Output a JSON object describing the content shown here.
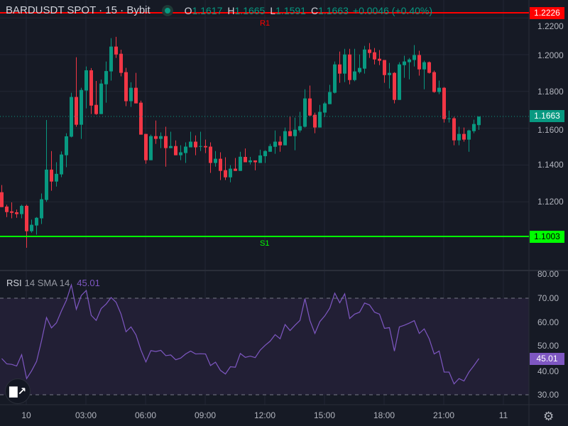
{
  "header": {
    "symbol": "BARDUSDT SPOT · 15 · Bybit",
    "open_label": "O",
    "open": "1.1617",
    "high_label": "H",
    "high": "1.1665",
    "low_label": "L",
    "low": "1.1591",
    "close_label": "C",
    "close": "1.1663",
    "change": "+0.0046 (+0.40%)",
    "status_icon": "market-open-dot"
  },
  "rsi_legend": {
    "name": "RSI",
    "params": "14 SMA 14",
    "value": "45.01"
  },
  "levels": {
    "r1": {
      "label": "R1",
      "price": "1.2226",
      "color": "#ff0000"
    },
    "s1": {
      "label": "S1",
      "price": "1.1003",
      "color": "#00ff00"
    },
    "last": {
      "price": "1.1663",
      "color": "#089981"
    },
    "rsi_last": {
      "value": "45.01",
      "color": "#7e57c2"
    }
  },
  "price_axis": [
    "1.2200",
    "1.2000",
    "1.1800",
    "1.1600",
    "1.1400",
    "1.1200"
  ],
  "rsi_axis": [
    "80.00",
    "70.00",
    "60.00",
    "50.00",
    "40.00",
    "30.00"
  ],
  "time_axis": [
    "10",
    "03:00",
    "06:00",
    "09:00",
    "12:00",
    "15:00",
    "18:00",
    "21:00",
    "11"
  ],
  "colors": {
    "up": "#089981",
    "down": "#f23645",
    "rsi": "#7e57c2",
    "background": "#161a25"
  },
  "logo_text": "TV",
  "settings_icon": "gear-icon",
  "chart_data": [
    {
      "type": "candlestick",
      "interval": "15",
      "ylim": [
        1.095,
        1.228
      ],
      "grid": true,
      "ohlc_order": [
        "open",
        "high",
        "low",
        "close"
      ],
      "candles": [
        [
          1.1252,
          1.1291,
          1.1171,
          1.1171
        ],
        [
          1.1174,
          1.1184,
          1.1117,
          1.1144
        ],
        [
          1.1148,
          1.1197,
          1.111,
          1.114
        ],
        [
          1.1143,
          1.1158,
          1.1113,
          1.1133
        ],
        [
          1.1133,
          1.1184,
          1.111,
          1.1178
        ],
        [
          1.1178,
          1.1184,
          1.095,
          1.104
        ],
        [
          1.104,
          1.1103,
          1.1032,
          1.1075
        ],
        [
          1.1071,
          1.1117,
          1.1021,
          1.1113
        ],
        [
          1.111,
          1.1245,
          1.1079,
          1.1214
        ],
        [
          1.121,
          1.1645,
          1.12,
          1.1375
        ],
        [
          1.1375,
          1.1476,
          1.126,
          1.131
        ],
        [
          1.131,
          1.1415,
          1.1283,
          1.1352
        ],
        [
          1.1349,
          1.1474,
          1.1334,
          1.1457
        ],
        [
          1.1453,
          1.1573,
          1.1388,
          1.1556
        ],
        [
          1.1554,
          1.1793,
          1.155,
          1.177
        ],
        [
          1.177,
          1.1986,
          1.1608,
          1.1619
        ],
        [
          1.1619,
          1.182,
          1.1542,
          1.1808
        ],
        [
          1.1805,
          1.1936,
          1.1708,
          1.1915
        ],
        [
          1.1915,
          1.1927,
          1.1677,
          1.1723
        ],
        [
          1.1727,
          1.1857,
          1.1673,
          1.1677
        ],
        [
          1.1677,
          1.1865,
          1.1677,
          1.1843
        ],
        [
          1.1839,
          1.1963,
          1.1739,
          1.1911
        ],
        [
          1.1909,
          1.209,
          1.1859,
          1.2044
        ],
        [
          1.2044,
          1.2097,
          1.1982,
          1.2001
        ],
        [
          1.2005,
          1.2027,
          1.1882,
          1.1901
        ],
        [
          1.1905,
          1.1928,
          1.172,
          1.1747
        ],
        [
          1.1747,
          1.185,
          1.1716,
          1.182
        ],
        [
          1.182,
          1.1901,
          1.1735,
          1.1735
        ],
        [
          1.1739,
          1.175,
          1.1565,
          1.1565
        ],
        [
          1.1569,
          1.1569,
          1.1407,
          1.1426
        ],
        [
          1.1426,
          1.1565,
          1.1426,
          1.1557
        ],
        [
          1.1557,
          1.1642,
          1.1515,
          1.1542
        ],
        [
          1.1542,
          1.1577,
          1.1492,
          1.1557
        ],
        [
          1.1557,
          1.1608,
          1.1391,
          1.1492
        ],
        [
          1.1492,
          1.1581,
          1.1492,
          1.1503
        ],
        [
          1.1503,
          1.1534,
          1.1453,
          1.1453
        ],
        [
          1.1453,
          1.1507,
          1.1426,
          1.1469
        ],
        [
          1.1465,
          1.1523,
          1.1411,
          1.15
        ],
        [
          1.1496,
          1.1581,
          1.1496,
          1.1527
        ],
        [
          1.1527,
          1.1561,
          1.1453,
          1.1496
        ],
        [
          1.15,
          1.1581,
          1.1476,
          1.1503
        ],
        [
          1.1503,
          1.1538,
          1.1465,
          1.1496
        ],
        [
          1.15,
          1.1523,
          1.1357,
          1.1411
        ],
        [
          1.1411,
          1.1476,
          1.1391,
          1.1434
        ],
        [
          1.1434,
          1.1469,
          1.1318,
          1.1368
        ],
        [
          1.1372,
          1.1442,
          1.1318,
          1.1333
        ],
        [
          1.1333,
          1.1399,
          1.1306,
          1.138
        ],
        [
          1.138,
          1.1438,
          1.1368,
          1.1368
        ],
        [
          1.1368,
          1.1472,
          1.1368,
          1.1445
        ],
        [
          1.1444,
          1.149,
          1.1415,
          1.1415
        ],
        [
          1.1415,
          1.1444,
          1.1403,
          1.1425
        ],
        [
          1.1425,
          1.1425,
          1.1371,
          1.1415
        ],
        [
          1.1411,
          1.1483,
          1.1411,
          1.1452
        ],
        [
          1.1448,
          1.148,
          1.1411,
          1.1476
        ],
        [
          1.1472,
          1.1515,
          1.1472,
          1.1503
        ],
        [
          1.1499,
          1.1588,
          1.1461,
          1.1527
        ],
        [
          1.1527,
          1.1557,
          1.1472,
          1.1507
        ],
        [
          1.1507,
          1.1604,
          1.1507,
          1.1584
        ],
        [
          1.1584,
          1.1665,
          1.1557,
          1.1557
        ],
        [
          1.1557,
          1.1658,
          1.148,
          1.1592
        ],
        [
          1.1588,
          1.1689,
          1.1577,
          1.1611
        ],
        [
          1.1608,
          1.1812,
          1.1604,
          1.1762
        ],
        [
          1.1762,
          1.1832,
          1.1662,
          1.1669
        ],
        [
          1.1673,
          1.1685,
          1.1573,
          1.1604
        ],
        [
          1.1604,
          1.1727,
          1.1604,
          1.1689
        ],
        [
          1.1685,
          1.1743,
          1.1662,
          1.1735
        ],
        [
          1.1731,
          1.1836,
          1.1731,
          1.1797
        ],
        [
          1.1793,
          1.1963,
          1.1789,
          1.1947
        ],
        [
          1.1947,
          1.2017,
          1.1847,
          1.1897
        ],
        [
          1.1897,
          1.2032,
          1.1851,
          1.2001
        ],
        [
          1.2001,
          1.2032,
          1.1839,
          1.1862
        ],
        [
          1.1862,
          1.2032,
          1.1855,
          1.1909
        ],
        [
          1.1905,
          1.2001,
          1.1897,
          1.1928
        ],
        [
          1.1924,
          1.2048,
          1.1897,
          1.2028
        ],
        [
          1.2028,
          1.2063,
          1.1982,
          1.2009
        ],
        [
          1.2013,
          1.2036,
          1.1947,
          1.1974
        ],
        [
          1.1978,
          1.2025,
          1.1943,
          1.1967
        ],
        [
          1.1971,
          1.1971,
          1.1847,
          1.1889
        ],
        [
          1.1889,
          1.1955,
          1.1816,
          1.1901
        ],
        [
          1.1901,
          1.1905,
          1.1735,
          1.1754
        ],
        [
          1.1754,
          1.1959,
          1.1754,
          1.1947
        ],
        [
          1.1943,
          1.1994,
          1.1874,
          1.1963
        ],
        [
          1.1959,
          1.1982,
          1.1866,
          1.1974
        ],
        [
          1.1971,
          1.2052,
          1.1936,
          1.1998
        ],
        [
          1.1998,
          1.2021,
          1.1886,
          1.192
        ],
        [
          1.192,
          1.1967,
          1.1812,
          1.1959
        ],
        [
          1.1959,
          1.1963,
          1.1897,
          1.1901
        ],
        [
          1.1905,
          1.1913,
          1.1793,
          1.1797
        ],
        [
          1.1797,
          1.1859,
          1.1785,
          1.182
        ],
        [
          1.182,
          1.1824,
          1.1631,
          1.165
        ],
        [
          1.165,
          1.1696,
          1.1631,
          1.1654
        ],
        [
          1.1654,
          1.1662,
          1.1507,
          1.1534
        ],
        [
          1.1534,
          1.1608,
          1.1507,
          1.1569
        ],
        [
          1.1569,
          1.1604,
          1.1527,
          1.1538
        ],
        [
          1.1538,
          1.1592,
          1.1472,
          1.1588
        ],
        [
          1.1584,
          1.1646,
          1.1573,
          1.1623
        ],
        [
          1.1617,
          1.1665,
          1.1591,
          1.1663
        ]
      ]
    },
    {
      "type": "line",
      "name": "RSI",
      "ylim": [
        25,
        82
      ],
      "bands": [
        30,
        70
      ],
      "values": [
        45.0,
        42.8,
        42.6,
        41.9,
        46.6,
        36.7,
        39.9,
        43.8,
        52.4,
        62.0,
        57.7,
        59.8,
        64.7,
        69.1,
        75.5,
        65.4,
        71.1,
        73.2,
        62.9,
        60.8,
        65.7,
        67.6,
        70.3,
        68.3,
        63.4,
        56.1,
        58.1,
        54.8,
        48.5,
        43.6,
        48.3,
        47.9,
        48.4,
        46.2,
        46.5,
        44.5,
        45.2,
        46.9,
        48.1,
        46.9,
        47.0,
        46.9,
        42.1,
        43.5,
        40.1,
        38.6,
        41.6,
        41.4,
        47.1,
        45.5,
        46.0,
        45.4,
        48.5,
        50.5,
        52.2,
        54.9,
        53.2,
        59.1,
        56.6,
        58.8,
        60.8,
        69.8,
        60.8,
        55.4,
        60.3,
        62.7,
        65.9,
        72.1,
        68.1,
        71.8,
        61.6,
        63.4,
        64.2,
        68.0,
        67.2,
        64.2,
        63.4,
        57.5,
        57.8,
        48.1,
        58.1,
        58.8,
        59.7,
        60.7,
        55.4,
        57.3,
        53.2,
        46.9,
        48.1,
        39.4,
        39.4,
        34.5,
        36.7,
        35.7,
        39.4,
        42.1,
        45.01
      ]
    }
  ]
}
